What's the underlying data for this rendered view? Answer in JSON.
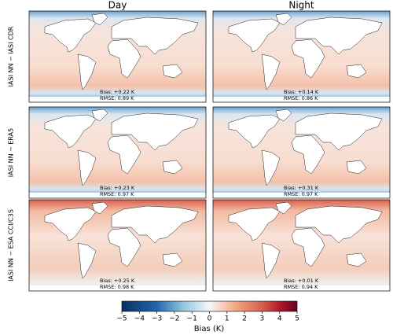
{
  "columns": [
    "Day",
    "Night"
  ],
  "rows": [
    {
      "label": "IASI NN − IASI CDR",
      "panels": [
        {
          "bias": "Bias: +0.22 K",
          "rmse": "RMSE: 0.89 K"
        },
        {
          "bias": "Bias: +0.14 K",
          "rmse": "RMSE: 0.86 K"
        }
      ]
    },
    {
      "label": "IASI NN − ERA5",
      "panels": [
        {
          "bias": "Bias: +0.23 K",
          "rmse": "RMSE: 0.97 K"
        },
        {
          "bias": "Bias: +0.31 K",
          "rmse": "RMSE: 0.97 K"
        }
      ]
    },
    {
      "label": "IASI NN − ESA CCI/C3S",
      "panels": [
        {
          "bias": "Bias: +0.25 K",
          "rmse": "RMSE: 0.98 K"
        },
        {
          "bias": "Bias: +0.01 K",
          "rmse": "RMSE: 0.94 K"
        }
      ]
    }
  ],
  "colorbar": {
    "label": "Bias (K)",
    "lim": [
      -5,
      5
    ],
    "ticks": [
      {
        "value": -5,
        "label": "−5"
      },
      {
        "value": -4,
        "label": "−4"
      },
      {
        "value": -3,
        "label": "−3"
      },
      {
        "value": -2,
        "label": "−2"
      },
      {
        "value": -1,
        "label": "−1"
      },
      0,
      1,
      2,
      3,
      4,
      5
    ]
  }
}
